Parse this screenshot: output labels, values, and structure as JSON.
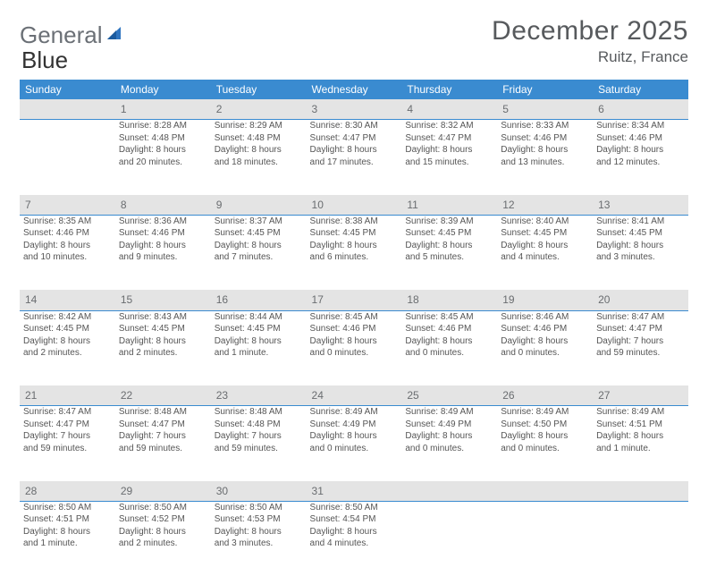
{
  "brand": {
    "word1": "General",
    "word2": "Blue"
  },
  "title": "December 2025",
  "location": "Ruitz, France",
  "day_headers": [
    "Sunday",
    "Monday",
    "Tuesday",
    "Wednesday",
    "Thursday",
    "Friday",
    "Saturday"
  ],
  "colors": {
    "header_bg": "#3a8bd0",
    "header_text": "#ffffff",
    "daynum_bg": "#e4e4e4",
    "daynum_border": "#3a8bd0",
    "text": "#555555",
    "brand_gray": "#6b7076",
    "brand_blue": "#2e74c0"
  },
  "weeks": [
    {
      "nums": [
        "",
        "1",
        "2",
        "3",
        "4",
        "5",
        "6"
      ],
      "cells": [
        null,
        {
          "sunrise": "Sunrise: 8:28 AM",
          "sunset": "Sunset: 4:48 PM",
          "dl1": "Daylight: 8 hours",
          "dl2": "and 20 minutes."
        },
        {
          "sunrise": "Sunrise: 8:29 AM",
          "sunset": "Sunset: 4:48 PM",
          "dl1": "Daylight: 8 hours",
          "dl2": "and 18 minutes."
        },
        {
          "sunrise": "Sunrise: 8:30 AM",
          "sunset": "Sunset: 4:47 PM",
          "dl1": "Daylight: 8 hours",
          "dl2": "and 17 minutes."
        },
        {
          "sunrise": "Sunrise: 8:32 AM",
          "sunset": "Sunset: 4:47 PM",
          "dl1": "Daylight: 8 hours",
          "dl2": "and 15 minutes."
        },
        {
          "sunrise": "Sunrise: 8:33 AM",
          "sunset": "Sunset: 4:46 PM",
          "dl1": "Daylight: 8 hours",
          "dl2": "and 13 minutes."
        },
        {
          "sunrise": "Sunrise: 8:34 AM",
          "sunset": "Sunset: 4:46 PM",
          "dl1": "Daylight: 8 hours",
          "dl2": "and 12 minutes."
        }
      ]
    },
    {
      "nums": [
        "7",
        "8",
        "9",
        "10",
        "11",
        "12",
        "13"
      ],
      "cells": [
        {
          "sunrise": "Sunrise: 8:35 AM",
          "sunset": "Sunset: 4:46 PM",
          "dl1": "Daylight: 8 hours",
          "dl2": "and 10 minutes."
        },
        {
          "sunrise": "Sunrise: 8:36 AM",
          "sunset": "Sunset: 4:46 PM",
          "dl1": "Daylight: 8 hours",
          "dl2": "and 9 minutes."
        },
        {
          "sunrise": "Sunrise: 8:37 AM",
          "sunset": "Sunset: 4:45 PM",
          "dl1": "Daylight: 8 hours",
          "dl2": "and 7 minutes."
        },
        {
          "sunrise": "Sunrise: 8:38 AM",
          "sunset": "Sunset: 4:45 PM",
          "dl1": "Daylight: 8 hours",
          "dl2": "and 6 minutes."
        },
        {
          "sunrise": "Sunrise: 8:39 AM",
          "sunset": "Sunset: 4:45 PM",
          "dl1": "Daylight: 8 hours",
          "dl2": "and 5 minutes."
        },
        {
          "sunrise": "Sunrise: 8:40 AM",
          "sunset": "Sunset: 4:45 PM",
          "dl1": "Daylight: 8 hours",
          "dl2": "and 4 minutes."
        },
        {
          "sunrise": "Sunrise: 8:41 AM",
          "sunset": "Sunset: 4:45 PM",
          "dl1": "Daylight: 8 hours",
          "dl2": "and 3 minutes."
        }
      ]
    },
    {
      "nums": [
        "14",
        "15",
        "16",
        "17",
        "18",
        "19",
        "20"
      ],
      "cells": [
        {
          "sunrise": "Sunrise: 8:42 AM",
          "sunset": "Sunset: 4:45 PM",
          "dl1": "Daylight: 8 hours",
          "dl2": "and 2 minutes."
        },
        {
          "sunrise": "Sunrise: 8:43 AM",
          "sunset": "Sunset: 4:45 PM",
          "dl1": "Daylight: 8 hours",
          "dl2": "and 2 minutes."
        },
        {
          "sunrise": "Sunrise: 8:44 AM",
          "sunset": "Sunset: 4:45 PM",
          "dl1": "Daylight: 8 hours",
          "dl2": "and 1 minute."
        },
        {
          "sunrise": "Sunrise: 8:45 AM",
          "sunset": "Sunset: 4:46 PM",
          "dl1": "Daylight: 8 hours",
          "dl2": "and 0 minutes."
        },
        {
          "sunrise": "Sunrise: 8:45 AM",
          "sunset": "Sunset: 4:46 PM",
          "dl1": "Daylight: 8 hours",
          "dl2": "and 0 minutes."
        },
        {
          "sunrise": "Sunrise: 8:46 AM",
          "sunset": "Sunset: 4:46 PM",
          "dl1": "Daylight: 8 hours",
          "dl2": "and 0 minutes."
        },
        {
          "sunrise": "Sunrise: 8:47 AM",
          "sunset": "Sunset: 4:47 PM",
          "dl1": "Daylight: 7 hours",
          "dl2": "and 59 minutes."
        }
      ]
    },
    {
      "nums": [
        "21",
        "22",
        "23",
        "24",
        "25",
        "26",
        "27"
      ],
      "cells": [
        {
          "sunrise": "Sunrise: 8:47 AM",
          "sunset": "Sunset: 4:47 PM",
          "dl1": "Daylight: 7 hours",
          "dl2": "and 59 minutes."
        },
        {
          "sunrise": "Sunrise: 8:48 AM",
          "sunset": "Sunset: 4:47 PM",
          "dl1": "Daylight: 7 hours",
          "dl2": "and 59 minutes."
        },
        {
          "sunrise": "Sunrise: 8:48 AM",
          "sunset": "Sunset: 4:48 PM",
          "dl1": "Daylight: 7 hours",
          "dl2": "and 59 minutes."
        },
        {
          "sunrise": "Sunrise: 8:49 AM",
          "sunset": "Sunset: 4:49 PM",
          "dl1": "Daylight: 8 hours",
          "dl2": "and 0 minutes."
        },
        {
          "sunrise": "Sunrise: 8:49 AM",
          "sunset": "Sunset: 4:49 PM",
          "dl1": "Daylight: 8 hours",
          "dl2": "and 0 minutes."
        },
        {
          "sunrise": "Sunrise: 8:49 AM",
          "sunset": "Sunset: 4:50 PM",
          "dl1": "Daylight: 8 hours",
          "dl2": "and 0 minutes."
        },
        {
          "sunrise": "Sunrise: 8:49 AM",
          "sunset": "Sunset: 4:51 PM",
          "dl1": "Daylight: 8 hours",
          "dl2": "and 1 minute."
        }
      ]
    },
    {
      "nums": [
        "28",
        "29",
        "30",
        "31",
        "",
        "",
        ""
      ],
      "cells": [
        {
          "sunrise": "Sunrise: 8:50 AM",
          "sunset": "Sunset: 4:51 PM",
          "dl1": "Daylight: 8 hours",
          "dl2": "and 1 minute."
        },
        {
          "sunrise": "Sunrise: 8:50 AM",
          "sunset": "Sunset: 4:52 PM",
          "dl1": "Daylight: 8 hours",
          "dl2": "and 2 minutes."
        },
        {
          "sunrise": "Sunrise: 8:50 AM",
          "sunset": "Sunset: 4:53 PM",
          "dl1": "Daylight: 8 hours",
          "dl2": "and 3 minutes."
        },
        {
          "sunrise": "Sunrise: 8:50 AM",
          "sunset": "Sunset: 4:54 PM",
          "dl1": "Daylight: 8 hours",
          "dl2": "and 4 minutes."
        },
        null,
        null,
        null
      ]
    }
  ]
}
